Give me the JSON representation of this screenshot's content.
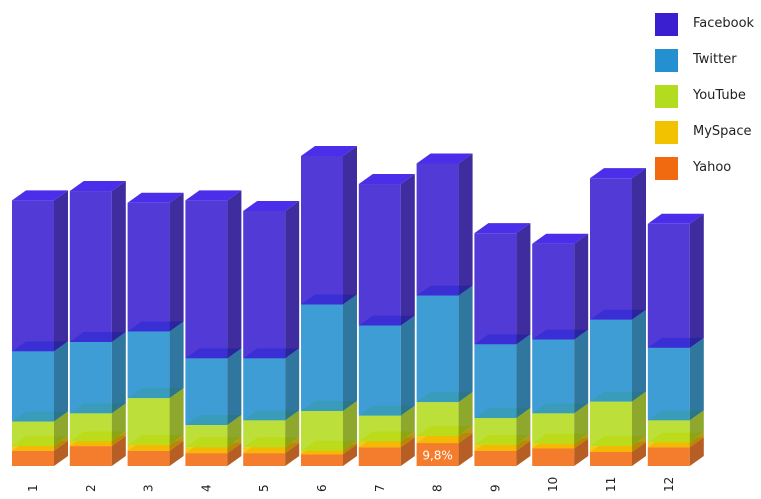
{
  "chart_data": {
    "type": "bar",
    "stacked": true,
    "three_d": true,
    "categories": [
      "1",
      "2",
      "3",
      "4",
      "5",
      "6",
      "7",
      "8",
      "9",
      "10",
      "11",
      "12"
    ],
    "series": [
      {
        "name": "Yahoo",
        "color": "#f26a10",
        "values": [
          6.5,
          8.5,
          6.5,
          5.5,
          5.5,
          5.0,
          8.0,
          9.8,
          6.5,
          7.5,
          6.0,
          8.0
        ]
      },
      {
        "name": "MySpace",
        "color": "#f2c200",
        "values": [
          2.0,
          2.0,
          2.5,
          2.5,
          2.5,
          1.5,
          2.5,
          3.0,
          2.5,
          2.0,
          2.5,
          2.0
        ]
      },
      {
        "name": "YouTube",
        "color": "#b3dc1e",
        "values": [
          10.5,
          12.0,
          20.0,
          9.5,
          11.5,
          17.0,
          11.0,
          14.5,
          11.5,
          13.0,
          19.0,
          9.5
        ]
      },
      {
        "name": "Twitter",
        "color": "#2490cf",
        "values": [
          30.0,
          30.5,
          28.5,
          28.5,
          26.5,
          45.5,
          38.5,
          45.5,
          31.5,
          31.5,
          35.0,
          31.0
        ]
      },
      {
        "name": "Facebook",
        "color": "#3a1fd0",
        "values": [
          64.5,
          64.5,
          55.0,
          67.5,
          63.0,
          63.5,
          60.5,
          56.5,
          47.5,
          41.0,
          60.5,
          53.0
        ]
      }
    ],
    "data_labels": [
      {
        "category": "8",
        "series": "Yahoo",
        "text": "9,8%"
      }
    ],
    "legend_position": "top-right",
    "grid": false
  }
}
